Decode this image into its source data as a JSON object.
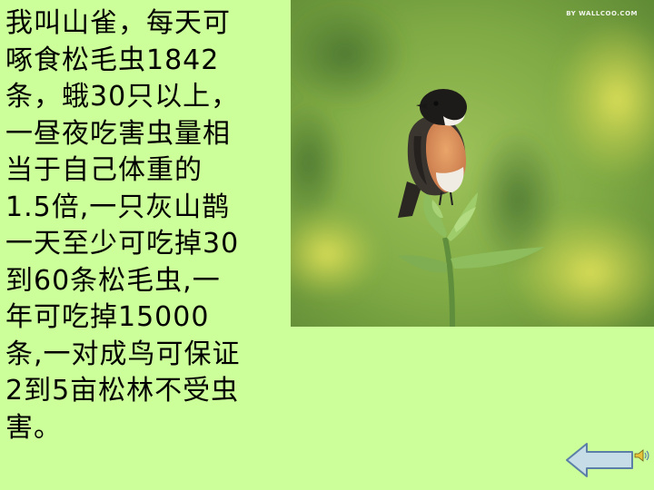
{
  "slide": {
    "lines": [
      "我叫山雀，每天可",
      "啄食松毛虫1842",
      "条，蛾30只以上，",
      "一昼夜吃害虫量相",
      "当于自己体重的",
      "1.5倍,一只灰山鹊",
      "一天至少可吃掉30",
      "到60条松毛虫,一",
      "年可吃掉15000",
      "条,一对成鸟可保证",
      "2到5亩松林不受虫",
      "害。"
    ]
  },
  "photo": {
    "watermark": "BY WALLCOO.COM"
  },
  "controls": {
    "back_icon": "left-arrow-icon",
    "sound_icon": "speaker-icon"
  },
  "colors": {
    "background": "#ccff99",
    "arrow_fill": "#c6dde8",
    "arrow_stroke": "#5b7fa6"
  }
}
